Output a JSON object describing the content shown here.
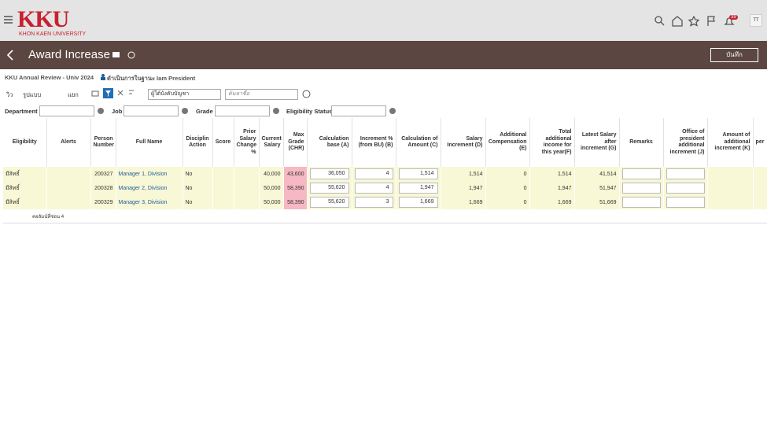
{
  "header": {
    "logo_text": "KKU",
    "logo_subtitle": "KHON KAEN UNIVERSITY",
    "notification_count": "39",
    "user_initials": "TT"
  },
  "title_bar": {
    "title": "Award Increase",
    "save_button": "บันทึก"
  },
  "breadcrumb": {
    "plan": "KKU Annual Review - Univ 2024",
    "acting_as": "ดำเนินการในฐานะ Iam President"
  },
  "toolbar": {
    "view": "วิว",
    "format": "รูปแบบ",
    "detach": "แยก",
    "population": "ผู้ใต้บังคับบัญชา",
    "search_placeholder": "ค้นหาชื่อ"
  },
  "filters": [
    "Department",
    "Job",
    "Grade",
    "Eligibility Status"
  ],
  "table": {
    "columns": [
      "Eligibility",
      "Alerts",
      "Person Number",
      "Full Name",
      "Disciplin Action",
      "Score",
      "Prior Salary Change %",
      "Current Salary",
      "Max Grade (CHR)",
      "Calculation base (A)",
      "Increment % (from BU) (B)",
      "Calculation of Amount (C)",
      "Salary Increment (D)",
      "Additional Compensation (E)",
      "Total additional income for this year(F)",
      "Latest Salary after increment (G)",
      "Remarks",
      "Office of president additional increment (J)",
      "Amount of additional increment (K)",
      "per"
    ],
    "rows": [
      [
        "มีสิทธิ์",
        null,
        "200327",
        "Manager 1, Division",
        "No",
        null,
        null,
        "40,000",
        "43,600",
        "36,050",
        "4",
        "1,514",
        "1,514",
        "0",
        "1,514",
        "41,514",
        null,
        null,
        null,
        null
      ],
      [
        "มีสิทธิ์",
        null,
        "200328",
        "Manager 2, Division",
        "No",
        null,
        null,
        "50,000",
        "58,390",
        "55,620",
        "4",
        "1,947",
        "1,947",
        "0",
        "1,947",
        "51,947",
        null,
        null,
        null,
        null
      ],
      [
        "มีสิทธิ์",
        null,
        "200329",
        "Manager 3, Division",
        "No",
        null,
        null,
        "50,000",
        "58,390",
        "55,620",
        "3",
        "1,669",
        "1,669",
        "0",
        "1,669",
        "51,669",
        null,
        null,
        null,
        null
      ]
    ],
    "hidden_columns_note": "คอลัมน์ที่ซ่อน 4"
  }
}
